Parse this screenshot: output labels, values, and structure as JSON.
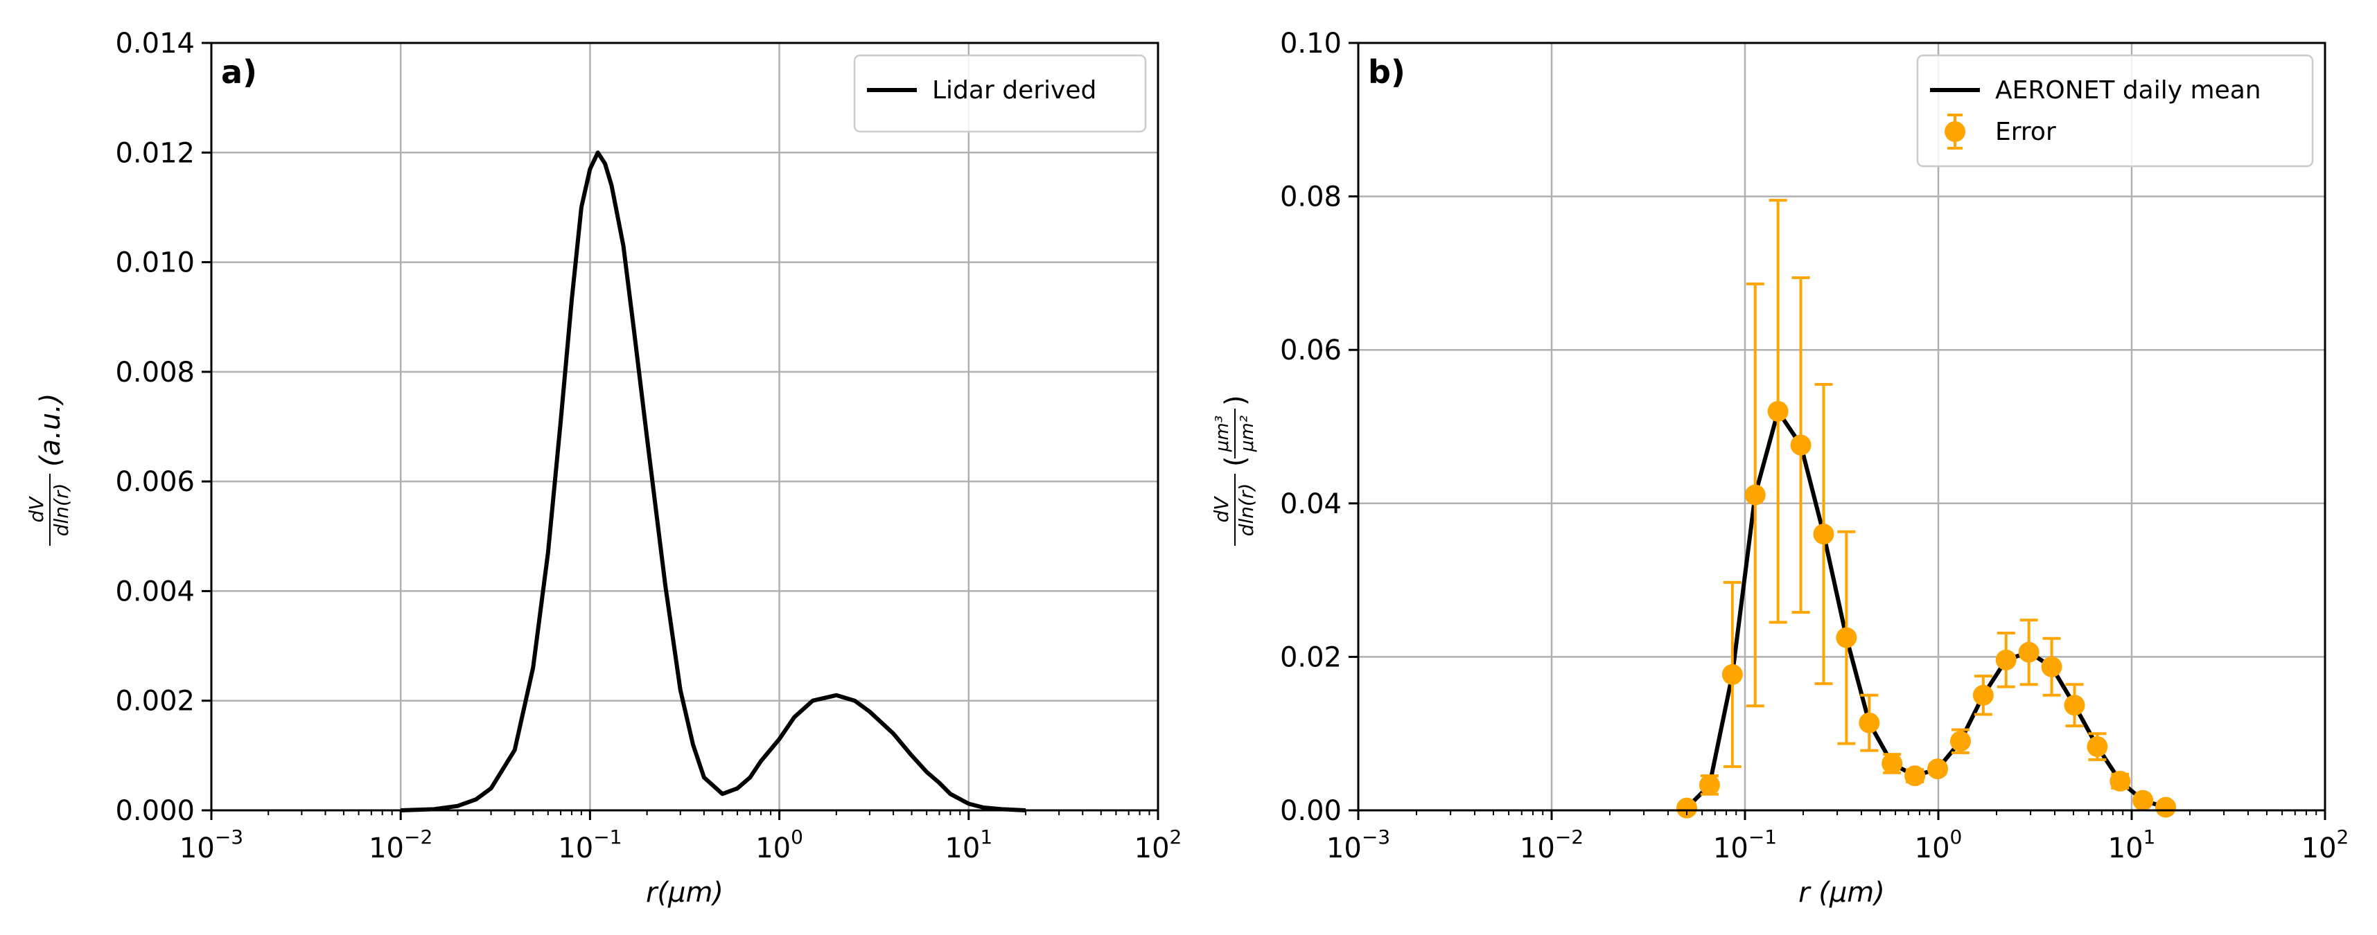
{
  "chart_data": [
    {
      "type": "line",
      "panel_label": "a)",
      "xscale": "log",
      "xlim": [
        0.001,
        100
      ],
      "ylim": [
        0,
        0.014
      ],
      "x_ticks": [
        0.001,
        0.01,
        0.1,
        1,
        10,
        100
      ],
      "x_tick_base": [
        "10",
        "10",
        "10",
        "10",
        "10",
        "10"
      ],
      "x_tick_exp": [
        "−3",
        "−2",
        "−1",
        "0",
        "1",
        "2"
      ],
      "y_ticks": [
        "0.000",
        "0.002",
        "0.004",
        "0.006",
        "0.008",
        "0.010",
        "0.012",
        "0.014"
      ],
      "y_tick_values": [
        0,
        0.002,
        0.004,
        0.006,
        0.008,
        0.01,
        0.012,
        0.014
      ],
      "xlabel": "r(μm)",
      "ylabel_num": "dV",
      "ylabel_den": "dln(r)",
      "ylabel_rest": "(a.u.)",
      "grid": true,
      "legend_position": "top-right",
      "series": [
        {
          "name": "Lidar derived",
          "color": "#000000",
          "style": "solid line",
          "x": [
            0.01,
            0.015,
            0.02,
            0.025,
            0.03,
            0.04,
            0.05,
            0.06,
            0.07,
            0.08,
            0.09,
            0.1,
            0.11,
            0.12,
            0.13,
            0.15,
            0.17,
            0.2,
            0.25,
            0.3,
            0.35,
            0.4,
            0.5,
            0.6,
            0.7,
            0.8,
            1.0,
            1.2,
            1.5,
            2.0,
            2.5,
            3.0,
            4.0,
            5.0,
            6.0,
            7.0,
            8.0,
            10,
            12,
            15,
            20
          ],
          "y": [
            0.0,
            2e-05,
            8e-05,
            0.0002,
            0.0004,
            0.0011,
            0.0026,
            0.0047,
            0.0071,
            0.0093,
            0.011,
            0.0117,
            0.012,
            0.0118,
            0.0114,
            0.0103,
            0.0088,
            0.0068,
            0.0041,
            0.0022,
            0.0012,
            0.0006,
            0.0003,
            0.0004,
            0.0006,
            0.0009,
            0.0013,
            0.0017,
            0.002,
            0.0021,
            0.002,
            0.0018,
            0.0014,
            0.001,
            0.0007,
            0.0005,
            0.0003,
            0.00012,
            5e-05,
            2e-05,
            0.0
          ]
        }
      ]
    },
    {
      "type": "line",
      "panel_label": "b)",
      "xscale": "log",
      "xlim": [
        0.001,
        100
      ],
      "ylim": [
        0,
        0.1
      ],
      "x_ticks": [
        0.001,
        0.01,
        0.1,
        1,
        10,
        100
      ],
      "x_tick_base": [
        "10",
        "10",
        "10",
        "10",
        "10",
        "10"
      ],
      "x_tick_exp": [
        "−3",
        "−2",
        "−1",
        "0",
        "1",
        "2"
      ],
      "y_ticks": [
        "0.00",
        "0.02",
        "0.04",
        "0.06",
        "0.08",
        "0.10"
      ],
      "y_tick_values": [
        0,
        0.02,
        0.04,
        0.06,
        0.08,
        0.1
      ],
      "xlabel": "r (μm)",
      "ylabel_num": "dV",
      "ylabel_den": "dln(r)",
      "ylabel_unit_num": "μm³",
      "ylabel_unit_den": "μm²",
      "grid": true,
      "legend_position": "top-right",
      "series": [
        {
          "name": "AERONET daily mean",
          "color": "#000000",
          "style": "solid line",
          "x": [
            0.05,
            0.065604,
            0.086077,
            0.112939,
            0.148184,
            0.194429,
            0.255105,
            0.334716,
            0.439173,
            0.576227,
            0.756052,
            0.991992,
            1.301566,
            1.707748,
            2.240687,
            2.939939,
            3.857405,
            5.061184,
            6.640628,
            8.713,
            11.432,
            15.0
          ],
          "y": [
            0.0003,
            0.0033,
            0.0177,
            0.0411,
            0.052,
            0.0476,
            0.036,
            0.0225,
            0.0114,
            0.0061,
            0.0045,
            0.0054,
            0.009,
            0.015,
            0.0196,
            0.0206,
            0.0187,
            0.0137,
            0.0083,
            0.0038,
            0.0013,
            0.0004
          ]
        },
        {
          "name": "Error",
          "color": "#FFA500",
          "style": "markers with error bars",
          "x": [
            0.05,
            0.065604,
            0.086077,
            0.112939,
            0.148184,
            0.194429,
            0.255105,
            0.334716,
            0.439173,
            0.576227,
            0.756052,
            0.991992,
            1.301566,
            1.707748,
            2.240687,
            2.939939,
            3.857405,
            5.061184,
            6.640628,
            8.713,
            11.432,
            15.0
          ],
          "y": [
            0.0003,
            0.0033,
            0.0177,
            0.0411,
            0.052,
            0.0476,
            0.036,
            0.0225,
            0.0114,
            0.0061,
            0.0045,
            0.0054,
            0.009,
            0.015,
            0.0196,
            0.0206,
            0.0187,
            0.0137,
            0.0083,
            0.0038,
            0.0013,
            0.0004
          ],
          "err": [
            0.0004,
            0.0012,
            0.012,
            0.0275,
            0.0275,
            0.0218,
            0.0195,
            0.0138,
            0.0036,
            0.0012,
            0.0008,
            0.0006,
            0.0015,
            0.0025,
            0.0035,
            0.0042,
            0.0037,
            0.0027,
            0.0017,
            0.0009,
            0.0004,
            0.0002
          ]
        }
      ]
    }
  ]
}
